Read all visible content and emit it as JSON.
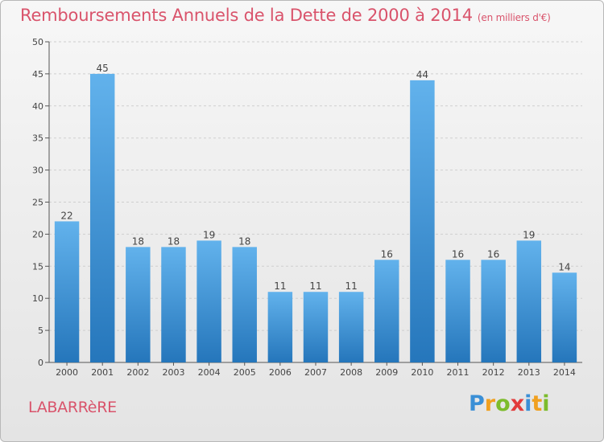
{
  "header": {
    "title": "Remboursements Annuels de la Dette de 2000 à 2014",
    "unit": "(en milliers d'€)"
  },
  "footer": {
    "commune": "LABARRèRE",
    "logo_text": "Proxiti"
  },
  "colors": {
    "bar_top": "#62b2ec",
    "bar_bottom": "#2576bb",
    "title": "#d9536b",
    "grid": "#cfcfcf"
  },
  "chart_data": {
    "type": "bar",
    "title": "Remboursements Annuels de la Dette de 2000 à 2014",
    "subtitle": "(en milliers d'€)",
    "xlabel": "",
    "ylabel": "",
    "categories": [
      "2000",
      "2001",
      "2002",
      "2003",
      "2004",
      "2005",
      "2006",
      "2007",
      "2008",
      "2009",
      "2010",
      "2011",
      "2012",
      "2013",
      "2014"
    ],
    "values": [
      22,
      45,
      18,
      18,
      19,
      18,
      11,
      11,
      11,
      16,
      44,
      16,
      16,
      19,
      14
    ],
    "ylim": [
      0,
      50
    ],
    "yticks": [
      0,
      5,
      10,
      15,
      20,
      25,
      30,
      35,
      40,
      45,
      50
    ],
    "grid": "horizontal dashed",
    "legend": "none",
    "data_labels": true
  }
}
